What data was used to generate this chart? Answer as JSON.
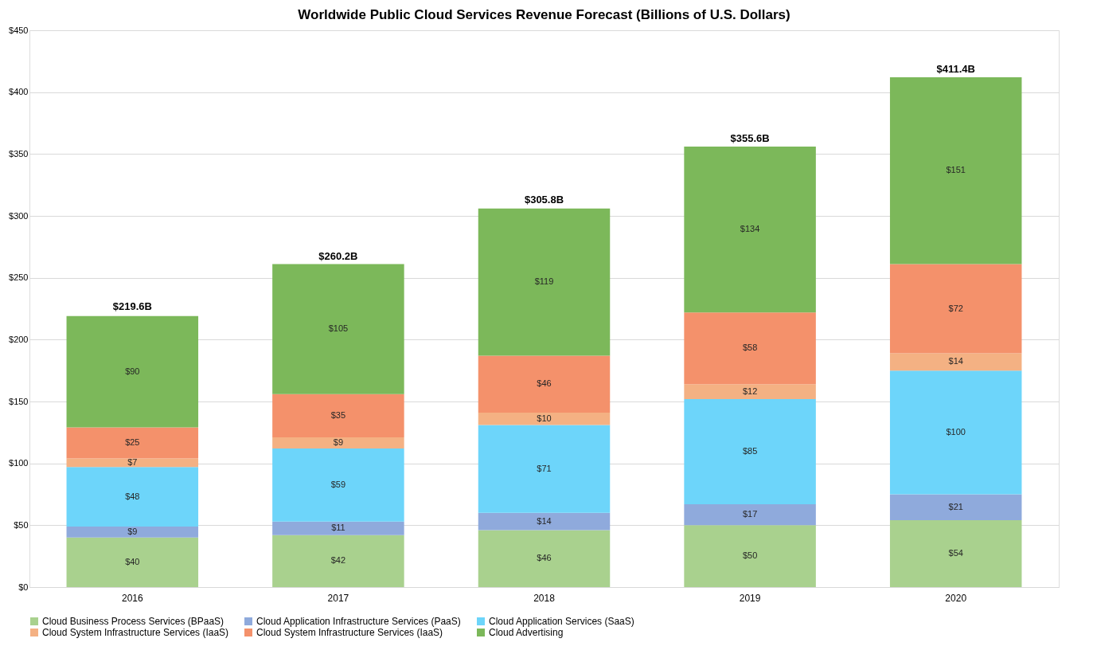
{
  "chart_data": {
    "type": "bar",
    "title": "Worldwide Public Cloud Services Revenue Forecast (Billions of U.S. Dollars)",
    "categories": [
      "2016",
      "2017",
      "2018",
      "2019",
      "2020"
    ],
    "stacked": true,
    "series": [
      {
        "name": "Cloud Business Process Services (BPaaS)",
        "color": "#a9d18e",
        "values": [
          40,
          42,
          46,
          50,
          54
        ],
        "value_labels": [
          "$40",
          "$42",
          "$46",
          "$50",
          "$54"
        ]
      },
      {
        "name": "Cloud Application Infrastructure Services (PaaS)",
        "color": "#8faadc",
        "values": [
          9,
          11,
          14,
          17,
          21
        ],
        "value_labels": [
          "$9",
          "$11",
          "$14",
          "$17",
          "$21"
        ]
      },
      {
        "name": "Cloud Application Services (SaaS)",
        "color": "#6dd5fa",
        "values": [
          48,
          59,
          71,
          85,
          100
        ],
        "value_labels": [
          "$48",
          "$59",
          "$71",
          "$85",
          "$100"
        ]
      },
      {
        "name": "Cloud System Infrastructure Services (IaaS)",
        "color": "#f4b183",
        "values": [
          7,
          9,
          10,
          12,
          14
        ],
        "value_labels": [
          "$7",
          "$9",
          "$10",
          "$12",
          "$14"
        ]
      },
      {
        "name": "Cloud System Infrastructure Services (IaaS)",
        "color": "#f4916b",
        "values": [
          25,
          35,
          46,
          58,
          72
        ],
        "value_labels": [
          "$25",
          "$35",
          "$46",
          "$58",
          "$72"
        ]
      },
      {
        "name": "Cloud Advertising",
        "color": "#7cb85a",
        "values": [
          90,
          105,
          119,
          134,
          151
        ],
        "value_labels": [
          "$90",
          "$105",
          "$119",
          "$134",
          "$151"
        ]
      }
    ],
    "annotations": [
      {
        "text": "$219.6B",
        "x": "2016",
        "y": 219.6
      },
      {
        "text": "$260.2B",
        "x": "2017",
        "y": 260.2
      },
      {
        "text": "$305.8B",
        "x": "2018",
        "y": 305.8
      },
      {
        "text": "$355.6B",
        "x": "2019",
        "y": 355.6
      },
      {
        "text": "$411.4B",
        "x": "2020",
        "y": 411.4
      }
    ],
    "ylim": [
      0,
      450
    ],
    "yticks": [
      {
        "value": 0,
        "label": "$0"
      },
      {
        "value": 50,
        "label": "$50"
      },
      {
        "value": 100,
        "label": "$100"
      },
      {
        "value": 150,
        "label": "$150"
      },
      {
        "value": 200,
        "label": "$200"
      },
      {
        "value": 250,
        "label": "$250"
      },
      {
        "value": 300,
        "label": "$300"
      },
      {
        "value": 350,
        "label": "$350"
      },
      {
        "value": 400,
        "label": "$400"
      },
      {
        "value": 450,
        "label": "$450"
      }
    ],
    "grid": "y",
    "legend": "bottom"
  }
}
